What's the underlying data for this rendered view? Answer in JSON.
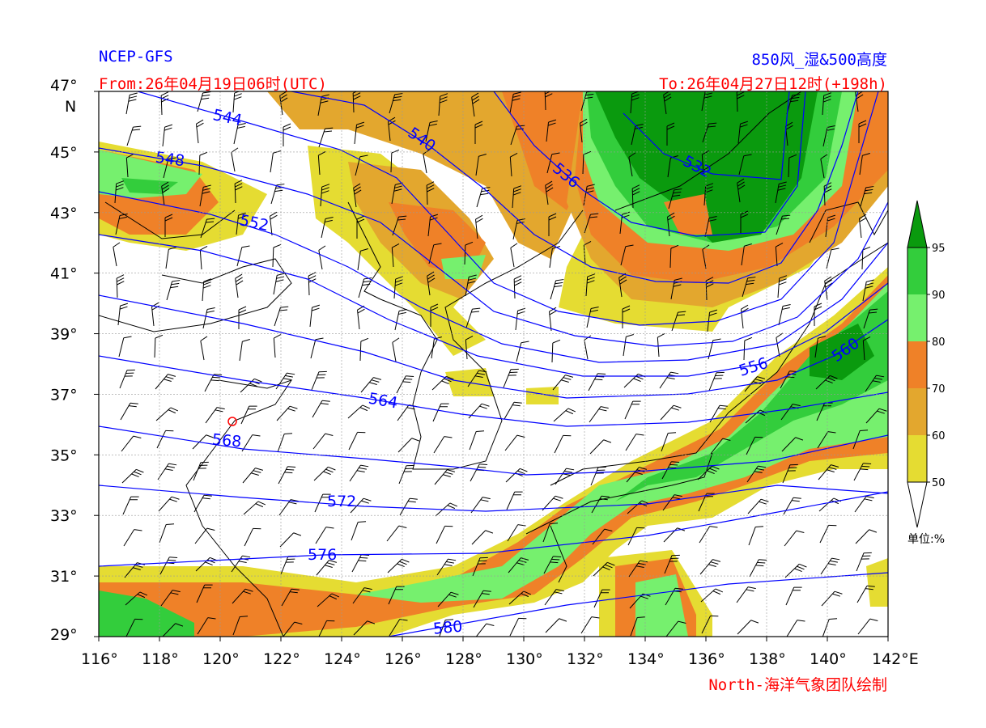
{
  "header": {
    "model": "NCEP-GFS",
    "product": "850风_湿&500高度",
    "from": "From:26年04月19日06时(UTC)",
    "to": "To:26年04月27日12时(+198h)",
    "credit": "North-海洋气象团队绘制"
  },
  "axes": {
    "lon_ticks": [
      "116°",
      "118°",
      "120°",
      "122°",
      "124°",
      "126°",
      "128°",
      "130°",
      "132°",
      "134°",
      "136°",
      "138°",
      "140°",
      "142°E"
    ],
    "lat_ticks": [
      "47°",
      "45°",
      "43°",
      "41°",
      "39°",
      "37°",
      "35°",
      "33°",
      "31°",
      "29°"
    ],
    "lat_unit": "N",
    "lon_range": [
      116,
      142
    ],
    "lat_range": [
      29,
      47
    ],
    "grid": true
  },
  "colorbar": {
    "ticks": [
      "50",
      "60",
      "70",
      "80",
      "90",
      "95"
    ],
    "colors": [
      "#e5dc32",
      "#e3a72e",
      "#ef8128",
      "#76f06e",
      "#33cd3c",
      "#0a9a0e"
    ],
    "unit": "单位:%",
    "extend": "both"
  },
  "contours": {
    "color": "#0000ff",
    "labels": [
      "544",
      "548",
      "552",
      "540",
      "536",
      "532",
      "556",
      "560",
      "564",
      "568",
      "572",
      "576",
      "580"
    ]
  }
}
